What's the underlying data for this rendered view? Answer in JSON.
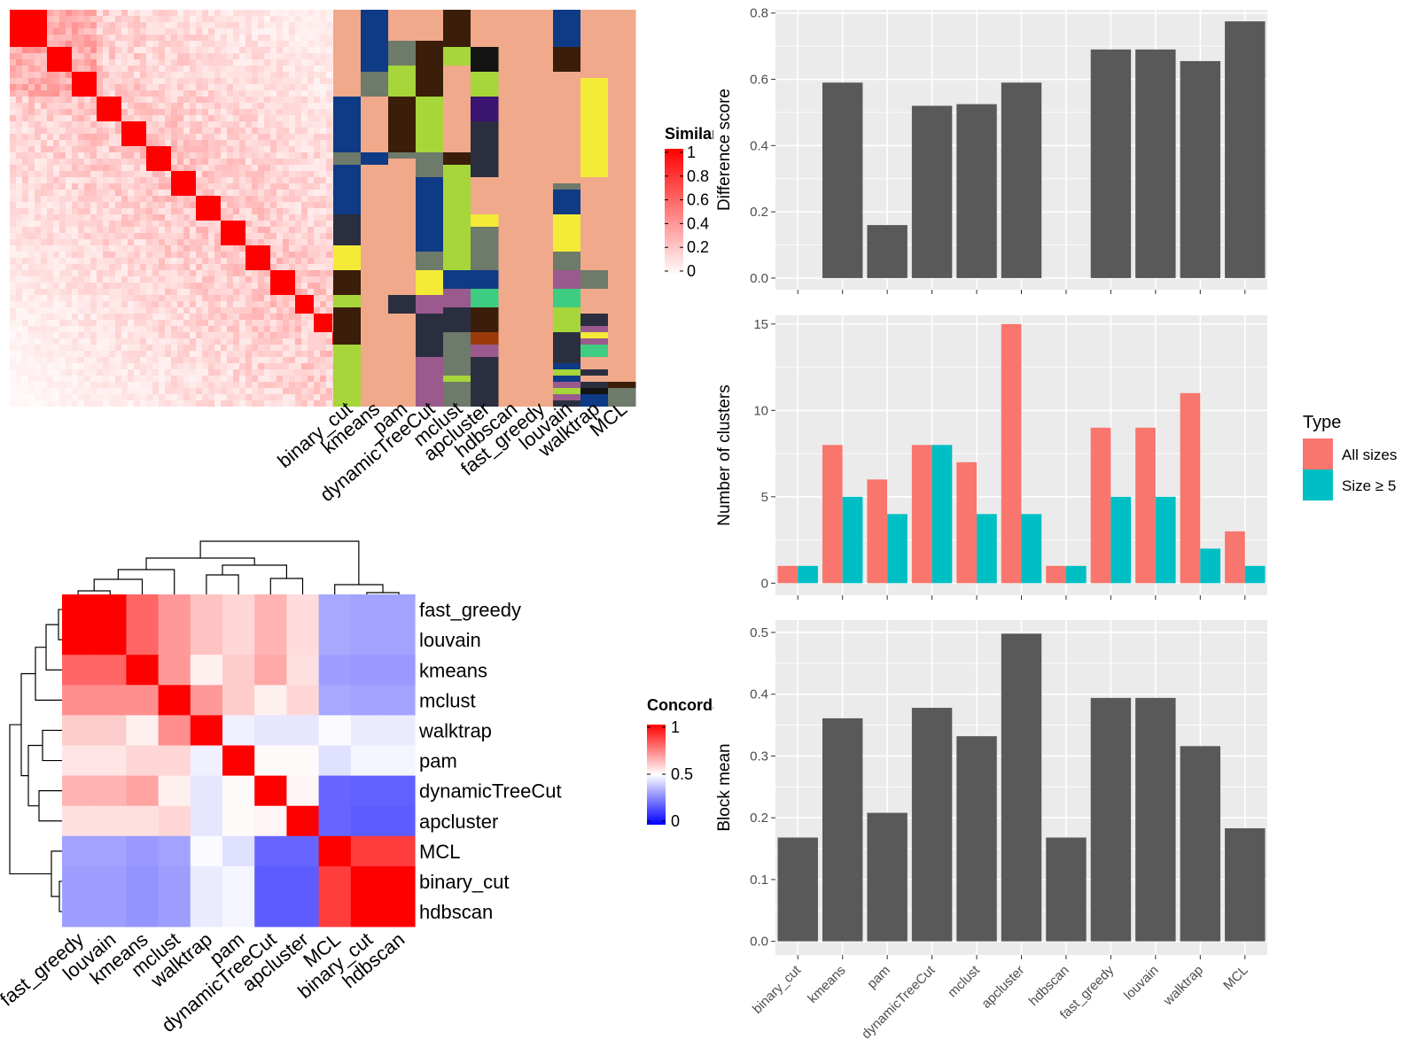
{
  "methods_top": [
    "binary_cut",
    "kmeans",
    "pam",
    "dynamicTreeCut",
    "mclust",
    "apcluster",
    "hdbscan",
    "fast_greedy",
    "louvain",
    "walktrap",
    "MCL"
  ],
  "similarity_legend": {
    "title": "Similarity",
    "ticks": [
      "1",
      "0.8",
      "0.6",
      "0.4",
      "0.2",
      "0"
    ]
  },
  "concordance_legend": {
    "title": "Concordance",
    "ticks": [
      "1",
      "0.5",
      "0"
    ]
  },
  "palette": {
    "bg": "#F0A98A",
    "red": "#F8766D",
    "teal": "#00BFC4",
    "bar": "#595959",
    "panel": "#EBEBEB"
  },
  "cluster_columns": [
    [
      [
        "bg",
        0,
        14
      ],
      [
        "navy",
        14,
        23
      ],
      [
        "olive",
        23,
        25
      ],
      [
        "navy",
        25,
        33
      ],
      [
        "dark",
        33,
        38
      ],
      [
        "yellow",
        38,
        42
      ],
      [
        "brown",
        42,
        46
      ],
      [
        "lime",
        46,
        48
      ],
      [
        "brown",
        48,
        54
      ],
      [
        "lime",
        54,
        64
      ]
    ],
    [
      [
        "navy",
        0,
        10
      ],
      [
        "olive",
        10,
        14
      ],
      [
        "bg",
        14,
        23
      ],
      [
        "navy",
        23,
        25
      ],
      [
        "bg",
        25,
        64
      ]
    ],
    [
      [
        "bg",
        0,
        5
      ],
      [
        "olive",
        5,
        9
      ],
      [
        "lime",
        9,
        14
      ],
      [
        "brown",
        14,
        23
      ],
      [
        "olive",
        23,
        24
      ],
      [
        "bg",
        24,
        46
      ],
      [
        "dark",
        46,
        49
      ],
      [
        "bg",
        49,
        64
      ]
    ],
    [
      [
        "bg",
        0,
        5
      ],
      [
        "brown",
        5,
        14
      ],
      [
        "lime",
        14,
        23
      ],
      [
        "olive",
        23,
        27
      ],
      [
        "navy",
        27,
        39
      ],
      [
        "olive",
        39,
        42
      ],
      [
        "yellow",
        42,
        46
      ],
      [
        "purple",
        46,
        49
      ],
      [
        "dark",
        49,
        56
      ],
      [
        "purple",
        56,
        64
      ]
    ],
    [
      [
        "brown",
        0,
        6
      ],
      [
        "lime",
        6,
        9
      ],
      [
        "bg",
        9,
        23
      ],
      [
        "brown",
        23,
        25
      ],
      [
        "lime",
        25,
        42
      ],
      [
        "navy",
        42,
        45
      ],
      [
        "purple",
        45,
        48
      ],
      [
        "dark",
        48,
        52
      ],
      [
        "olive",
        52,
        59
      ],
      [
        "lime",
        59,
        60
      ],
      [
        "olive",
        60,
        64
      ]
    ],
    [
      [
        "bg",
        0,
        6
      ],
      [
        "black",
        6,
        10
      ],
      [
        "lime",
        10,
        14
      ],
      [
        "indigo",
        14,
        18
      ],
      [
        "dark",
        18,
        21
      ],
      [
        "dark",
        21,
        24
      ],
      [
        "dark",
        24,
        27
      ],
      [
        "bg",
        27,
        33
      ],
      [
        "yellow",
        33,
        35
      ],
      [
        "olive",
        35,
        42
      ],
      [
        "navy",
        42,
        45
      ],
      [
        "green",
        45,
        48
      ],
      [
        "brown",
        48,
        52
      ],
      [
        "orange",
        52,
        54
      ],
      [
        "purple",
        54,
        56
      ],
      [
        "dark",
        56,
        64
      ]
    ],
    [
      [
        "bg",
        0,
        64
      ]
    ],
    [
      [
        "navy",
        0,
        6
      ],
      [
        "brown",
        6,
        10
      ],
      [
        "bg",
        10,
        28
      ],
      [
        "olive",
        28,
        29
      ],
      [
        "navy",
        29,
        33
      ],
      [
        "yellow",
        33,
        39
      ],
      [
        "olive",
        39,
        42
      ],
      [
        "purple",
        42,
        45
      ],
      [
        "green",
        45,
        48
      ],
      [
        "lime",
        48,
        52
      ],
      [
        "dark",
        52,
        57
      ],
      [
        "navy",
        57,
        58
      ],
      [
        "lime",
        58,
        59
      ],
      [
        "navy",
        59,
        60
      ],
      [
        "purple",
        60,
        61
      ],
      [
        "lime",
        61,
        62
      ],
      [
        "purple",
        62,
        63
      ],
      [
        "dark",
        63,
        64
      ]
    ],
    [
      [
        "bg",
        0,
        11
      ],
      [
        "yellow",
        11,
        27
      ],
      [
        "bg",
        27,
        42
      ],
      [
        "olive",
        42,
        45
      ],
      [
        "bg",
        45,
        49
      ],
      [
        "dark",
        49,
        51
      ],
      [
        "purple",
        51,
        52
      ],
      [
        "yellow",
        52,
        53
      ],
      [
        "purple",
        53,
        54
      ],
      [
        "green",
        54,
        56
      ],
      [
        "bg",
        56,
        58
      ],
      [
        "dark",
        58,
        59
      ],
      [
        "bg",
        59,
        60
      ],
      [
        "dark",
        60,
        61
      ],
      [
        "black",
        61,
        62
      ],
      [
        "navy",
        62,
        64
      ]
    ],
    [
      [
        "bg",
        0,
        60
      ],
      [
        "brown",
        60,
        61
      ],
      [
        "olive",
        61,
        64
      ]
    ]
  ],
  "concordance": {
    "rows": [
      "fast_greedy",
      "louvain",
      "kmeans",
      "mclust",
      "walktrap",
      "pam",
      "dynamicTreeCut",
      "apcluster",
      "MCL",
      "binary_cut",
      "hdbscan"
    ],
    "cols": [
      "fast_greedy",
      "louvain",
      "kmeans",
      "mclust",
      "walktrap",
      "pam",
      "dynamicTreeCut",
      "apcluster",
      "MCL",
      "binary_cut",
      "hdbscan"
    ],
    "values": [
      [
        1,
        1,
        0.8,
        0.7,
        0.62,
        0.58,
        0.65,
        0.57,
        0.33,
        0.32,
        0.32
      ],
      [
        1,
        1,
        0.8,
        0.7,
        0.62,
        0.58,
        0.65,
        0.57,
        0.33,
        0.32,
        0.32
      ],
      [
        0.8,
        0.8,
        1,
        0.7,
        0.53,
        0.6,
        0.67,
        0.56,
        0.31,
        0.3,
        0.3
      ],
      [
        0.72,
        0.72,
        0.72,
        1,
        0.7,
        0.6,
        0.53,
        0.58,
        0.33,
        0.32,
        0.32
      ],
      [
        0.6,
        0.6,
        0.53,
        0.72,
        1,
        0.47,
        0.45,
        0.45,
        0.49,
        0.46,
        0.46
      ],
      [
        0.55,
        0.55,
        0.58,
        0.58,
        0.47,
        1,
        0.51,
        0.51,
        0.44,
        0.48,
        0.48
      ],
      [
        0.65,
        0.65,
        0.68,
        0.53,
        0.45,
        0.51,
        1,
        0.52,
        0.2,
        0.19,
        0.19
      ],
      [
        0.56,
        0.56,
        0.56,
        0.58,
        0.45,
        0.51,
        0.52,
        1,
        0.2,
        0.18,
        0.18
      ],
      [
        0.32,
        0.32,
        0.3,
        0.32,
        0.49,
        0.44,
        0.2,
        0.2,
        1,
        0.88,
        0.88
      ],
      [
        0.31,
        0.31,
        0.29,
        0.31,
        0.46,
        0.48,
        0.18,
        0.18,
        0.88,
        1,
        1
      ],
      [
        0.31,
        0.31,
        0.29,
        0.31,
        0.46,
        0.48,
        0.18,
        0.18,
        0.88,
        1,
        1
      ]
    ]
  },
  "chart_data": [
    {
      "type": "heatmap",
      "title": "",
      "legend_title": "Similarity",
      "legend_range": [
        0,
        1
      ],
      "columns": [
        "binary_cut",
        "kmeans",
        "pam",
        "dynamicTreeCut",
        "mclust",
        "apcluster",
        "hdbscan",
        "fast_greedy",
        "louvain",
        "walktrap",
        "MCL"
      ]
    },
    {
      "type": "heatmap",
      "title": "",
      "legend_title": "Concordance",
      "legend_range": [
        0,
        1
      ]
    },
    {
      "type": "bar",
      "categories": [
        "binary_cut",
        "kmeans",
        "pam",
        "dynamicTreeCut",
        "mclust",
        "apcluster",
        "hdbscan",
        "fast_greedy",
        "louvain",
        "walktrap",
        "MCL"
      ],
      "values": [
        0,
        0.59,
        0.16,
        0.52,
        0.525,
        0.59,
        0,
        0.69,
        0.69,
        0.655,
        0.775
      ],
      "ylabel": "Difference score",
      "ylim": [
        -0.035,
        0.81
      ],
      "yticks": [
        "0.0",
        "0.2",
        "0.4",
        "0.6",
        "0.8"
      ],
      "grid": true
    },
    {
      "type": "bar",
      "categories": [
        "binary_cut",
        "kmeans",
        "pam",
        "dynamicTreeCut",
        "mclust",
        "apcluster",
        "hdbscan",
        "fast_greedy",
        "louvain",
        "walktrap",
        "MCL"
      ],
      "series": [
        {
          "name": "All sizes",
          "values": [
            1,
            8,
            6,
            8,
            7,
            15,
            1,
            9,
            9,
            11,
            3
          ]
        },
        {
          "name": "Size ≥ 5",
          "values": [
            1,
            5,
            4,
            8,
            4,
            4,
            1,
            5,
            5,
            2,
            1
          ]
        }
      ],
      "ylabel": "Number of clusters",
      "legend_title": "Type",
      "ylim": [
        -0.7,
        15.5
      ],
      "yticks": [
        "0",
        "5",
        "10",
        "15"
      ],
      "grid": true
    },
    {
      "type": "bar",
      "categories": [
        "binary_cut",
        "kmeans",
        "pam",
        "dynamicTreeCut",
        "mclust",
        "apcluster",
        "hdbscan",
        "fast_greedy",
        "louvain",
        "walktrap",
        "MCL"
      ],
      "values": [
        0.168,
        0.361,
        0.208,
        0.378,
        0.332,
        0.498,
        0.168,
        0.394,
        0.394,
        0.316,
        0.183
      ],
      "ylabel": "Block mean",
      "ylim": [
        -0.022,
        0.52
      ],
      "yticks": [
        "0.0",
        "0.1",
        "0.2",
        "0.3",
        "0.4",
        "0.5"
      ],
      "grid": true
    }
  ]
}
